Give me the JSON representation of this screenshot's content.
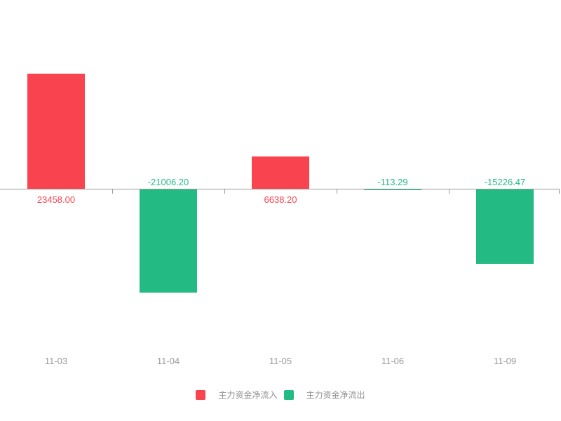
{
  "chart_data": {
    "type": "bar",
    "title": "",
    "xlabel": "",
    "ylabel": "",
    "categories": [
      "11-03",
      "11-04",
      "11-05",
      "11-06",
      "11-09"
    ],
    "values": [
      23458.0,
      -21006.2,
      6638.2,
      -113.29,
      -15226.47
    ],
    "value_labels": [
      "23458.00",
      "-21006.20",
      "6638.20",
      "-113.29",
      "-15226.47"
    ],
    "ylim": [
      -24000,
      24000
    ],
    "y_axis_visible": false,
    "grid": false,
    "legend_position": "bottom",
    "colors": {
      "positive": "#f9434f",
      "negative": "#23ba84",
      "axis": "#999999",
      "category_label": "#999999",
      "legend_text": "#8f8f8f",
      "background": "#ffffff"
    }
  },
  "legend": {
    "items": [
      {
        "label": "主力资金净流入",
        "color": "#f9434f",
        "meaning": "positive bars"
      },
      {
        "label": "主力资金净流出",
        "color": "#23ba84",
        "meaning": "negative bars"
      }
    ]
  }
}
